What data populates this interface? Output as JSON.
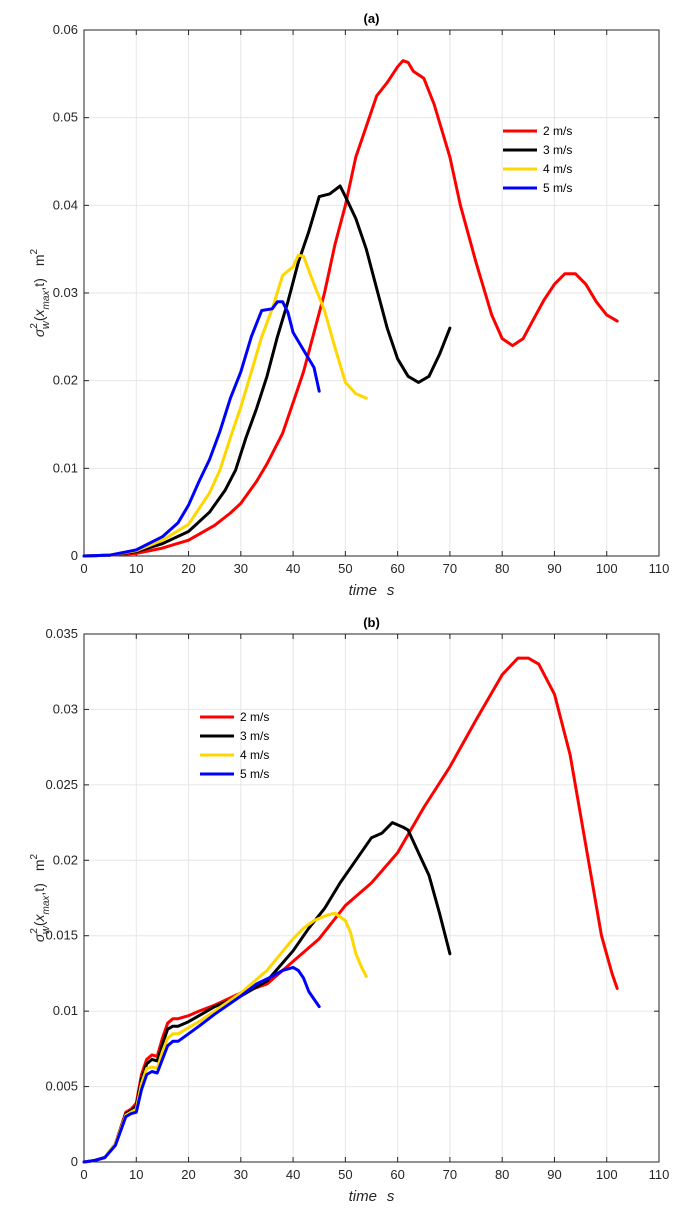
{
  "chart_data": [
    {
      "type": "line",
      "title": "(a)",
      "xlabel_main": "time",
      "xlabel_unit": "s",
      "ylabel": {
        "sigma": "σ",
        "sup": "2",
        "sub": "w",
        "open": "(",
        "x": "x",
        "xsub": "max",
        "rest": ",t)",
        "unit": "m",
        "unit_sup": "2"
      },
      "xlim": [
        0,
        110
      ],
      "ylim": [
        0,
        0.06
      ],
      "xticks": [
        0,
        10,
        20,
        30,
        40,
        50,
        60,
        70,
        80,
        90,
        100,
        110
      ],
      "xtick_labels": [
        "0",
        "10",
        "20",
        "30",
        "40",
        "50",
        "60",
        "70",
        "80",
        "90",
        "100",
        "110"
      ],
      "yticks": [
        0,
        0.01,
        0.02,
        0.03,
        0.04,
        0.05,
        0.06
      ],
      "ytick_labels": [
        "0",
        "0.01",
        "0.02",
        "0.03",
        "0.04",
        "0.05",
        "0.06"
      ],
      "grid": true,
      "legend_position": "top-right",
      "series": [
        {
          "name": "2 m/s",
          "color": "#ff0000",
          "x": [
            0,
            5,
            10,
            15,
            20,
            25,
            28,
            30,
            33,
            35,
            38,
            40,
            42,
            44,
            46,
            48,
            50,
            52,
            54,
            56,
            58,
            60,
            61,
            62,
            63,
            65,
            67,
            70,
            72,
            75,
            78,
            80,
            82,
            84,
            86,
            88,
            90,
            92,
            94,
            96,
            98,
            100,
            102
          ],
          "y": [
            0,
            0.0001,
            0.0003,
            0.0009,
            0.0018,
            0.0035,
            0.0049,
            0.006,
            0.0085,
            0.0105,
            0.014,
            0.0175,
            0.021,
            0.0255,
            0.03,
            0.0355,
            0.04,
            0.0455,
            0.049,
            0.0525,
            0.054,
            0.0558,
            0.0565,
            0.0563,
            0.0553,
            0.0545,
            0.0515,
            0.0455,
            0.04,
            0.0335,
            0.0275,
            0.0248,
            0.024,
            0.0248,
            0.027,
            0.0292,
            0.031,
            0.0322,
            0.0322,
            0.031,
            0.029,
            0.0275,
            0.0268
          ]
        },
        {
          "name": "3 m/s",
          "color": "#000000",
          "x": [
            0,
            5,
            10,
            15,
            20,
            24,
            27,
            29,
            31,
            33,
            35,
            37,
            39,
            41,
            43,
            45,
            47,
            49,
            50,
            52,
            54,
            56,
            58,
            60,
            62,
            64,
            66,
            68,
            70
          ],
          "y": [
            0,
            0.0001,
            0.0005,
            0.0014,
            0.0028,
            0.005,
            0.0075,
            0.0098,
            0.0135,
            0.0168,
            0.0205,
            0.025,
            0.029,
            0.0335,
            0.037,
            0.041,
            0.0413,
            0.0422,
            0.041,
            0.0385,
            0.035,
            0.0305,
            0.026,
            0.0225,
            0.0205,
            0.0198,
            0.0205,
            0.023,
            0.026
          ]
        },
        {
          "name": "4 m/s",
          "color": "#ffd700",
          "x": [
            0,
            5,
            10,
            15,
            20,
            24,
            26,
            28,
            30,
            32,
            34,
            36,
            38,
            40,
            41,
            42,
            44,
            46,
            48,
            50,
            52,
            54
          ],
          "y": [
            0,
            0.0001,
            0.0006,
            0.0018,
            0.0036,
            0.0072,
            0.0098,
            0.0135,
            0.017,
            0.021,
            0.025,
            0.0282,
            0.032,
            0.033,
            0.0343,
            0.0342,
            0.031,
            0.028,
            0.0238,
            0.0198,
            0.0185,
            0.018
          ]
        },
        {
          "name": "5 m/s",
          "color": "#0000ff",
          "x": [
            0,
            5,
            10,
            15,
            18,
            20,
            22,
            24,
            26,
            28,
            30,
            32,
            34,
            36,
            37,
            38,
            39,
            40,
            42,
            44,
            45
          ],
          "y": [
            0,
            0.0001,
            0.0007,
            0.0022,
            0.0038,
            0.0058,
            0.0085,
            0.011,
            0.0142,
            0.018,
            0.021,
            0.025,
            0.028,
            0.0282,
            0.029,
            0.029,
            0.0278,
            0.0255,
            0.0235,
            0.0215,
            0.0188
          ]
        }
      ]
    },
    {
      "type": "line",
      "title": "(b)",
      "xlabel_main": "time",
      "xlabel_unit": "s",
      "ylabel": {
        "sigma": "σ",
        "sup": "2",
        "sub": "w",
        "open": "(",
        "x": "x",
        "xsub": "max",
        "rest": ",t)",
        "unit": "m",
        "unit_sup": "2"
      },
      "xlim": [
        0,
        110
      ],
      "ylim": [
        0,
        0.035
      ],
      "xticks": [
        0,
        10,
        20,
        30,
        40,
        50,
        60,
        70,
        80,
        90,
        100,
        110
      ],
      "xtick_labels": [
        "0",
        "10",
        "20",
        "30",
        "40",
        "50",
        "60",
        "70",
        "80",
        "90",
        "100",
        "110"
      ],
      "yticks": [
        0,
        0.005,
        0.01,
        0.015,
        0.02,
        0.025,
        0.03,
        0.035
      ],
      "ytick_labels": [
        "0",
        "0.005",
        "0.01",
        "0.015",
        "0.02",
        "0.025",
        "0.03",
        "0.035"
      ],
      "grid": true,
      "legend_position": "top-left",
      "series": [
        {
          "name": "2 m/s",
          "color": "#ff0000",
          "x": [
            0,
            2,
            4,
            6,
            8,
            9,
            10,
            11,
            12,
            13,
            14,
            15,
            16,
            17,
            18,
            20,
            22,
            25,
            30,
            35,
            40,
            45,
            50,
            55,
            60,
            65,
            70,
            75,
            80,
            83,
            85,
            87,
            90,
            93,
            96,
            99,
            101,
            102
          ],
          "y": [
            0,
            0.0001,
            0.0003,
            0.0012,
            0.0033,
            0.0035,
            0.0039,
            0.0058,
            0.0068,
            0.0071,
            0.007,
            0.0082,
            0.0092,
            0.0095,
            0.0095,
            0.0097,
            0.01,
            0.0104,
            0.0112,
            0.0118,
            0.0133,
            0.0148,
            0.017,
            0.0185,
            0.0205,
            0.0235,
            0.0262,
            0.0293,
            0.0323,
            0.0334,
            0.0334,
            0.033,
            0.031,
            0.027,
            0.021,
            0.015,
            0.0125,
            0.0115
          ]
        },
        {
          "name": "3 m/s",
          "color": "#000000",
          "x": [
            0,
            2,
            4,
            6,
            8,
            9,
            10,
            11,
            12,
            13,
            14,
            15,
            16,
            17,
            18,
            20,
            22,
            25,
            30,
            35,
            40,
            43,
            46,
            49,
            52,
            55,
            57,
            59,
            61,
            62,
            64,
            66,
            68,
            70
          ],
          "y": [
            0,
            0.0001,
            0.0003,
            0.0012,
            0.0032,
            0.0034,
            0.0037,
            0.0055,
            0.0065,
            0.0068,
            0.0067,
            0.0078,
            0.0088,
            0.009,
            0.009,
            0.0093,
            0.0097,
            0.0103,
            0.011,
            0.012,
            0.014,
            0.0155,
            0.0168,
            0.0185,
            0.02,
            0.0215,
            0.0218,
            0.0225,
            0.0222,
            0.022,
            0.0205,
            0.019,
            0.0165,
            0.0138
          ]
        },
        {
          "name": "4 m/s",
          "color": "#ffd700",
          "x": [
            0,
            2,
            4,
            6,
            8,
            9,
            10,
            11,
            12,
            13,
            14,
            15,
            16,
            17,
            18,
            20,
            22,
            25,
            30,
            35,
            40,
            42,
            44,
            46,
            48,
            50,
            51,
            52,
            53,
            54
          ],
          "y": [
            0,
            0.0001,
            0.0003,
            0.0012,
            0.0031,
            0.0033,
            0.0035,
            0.0052,
            0.0062,
            0.0063,
            0.0062,
            0.0073,
            0.0082,
            0.0085,
            0.0085,
            0.0089,
            0.0093,
            0.01,
            0.0112,
            0.0127,
            0.0148,
            0.0155,
            0.016,
            0.0163,
            0.0165,
            0.016,
            0.0152,
            0.0138,
            0.013,
            0.0123
          ]
        },
        {
          "name": "5 m/s",
          "color": "#0000ff",
          "x": [
            0,
            2,
            4,
            6,
            8,
            9,
            10,
            11,
            12,
            13,
            14,
            15,
            16,
            17,
            18,
            20,
            22,
            25,
            30,
            33,
            36,
            38,
            40,
            41,
            42,
            43,
            44,
            45
          ],
          "y": [
            0,
            0.0001,
            0.0003,
            0.0011,
            0.003,
            0.0032,
            0.0033,
            0.0048,
            0.0058,
            0.006,
            0.0059,
            0.0068,
            0.0077,
            0.008,
            0.008,
            0.0085,
            0.009,
            0.0098,
            0.011,
            0.0118,
            0.0123,
            0.0127,
            0.0129,
            0.0127,
            0.0122,
            0.0113,
            0.0108,
            0.0103
          ]
        }
      ]
    }
  ]
}
